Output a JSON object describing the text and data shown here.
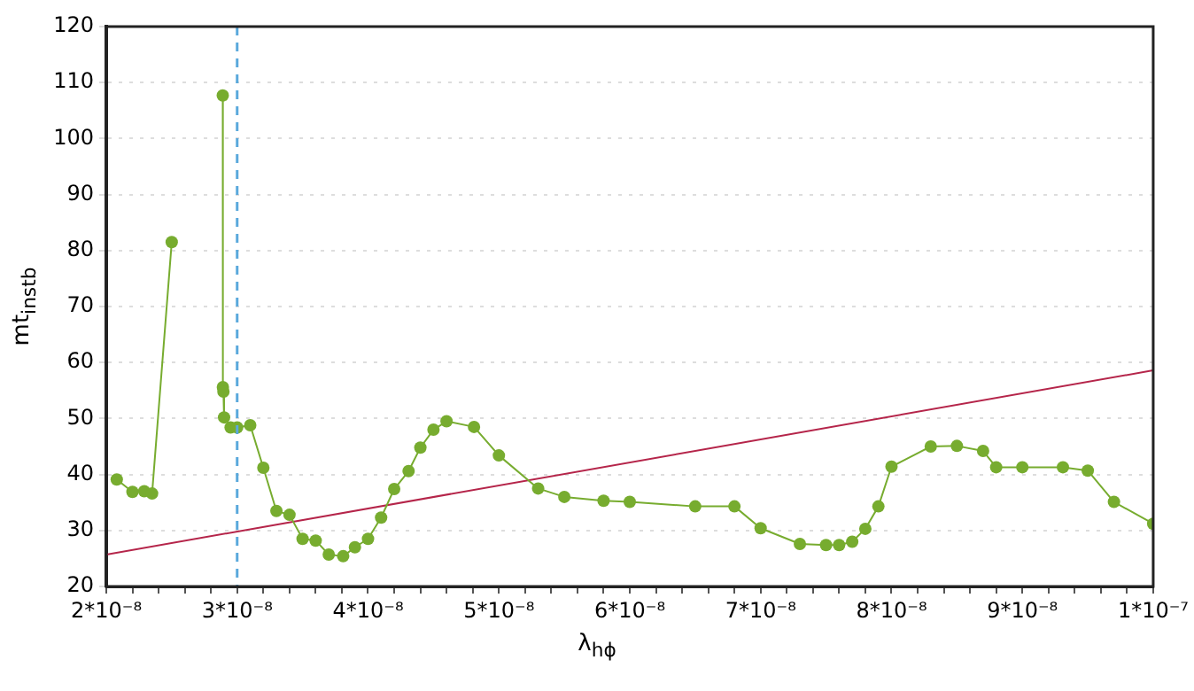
{
  "chart_data": {
    "type": "line",
    "xlabel": "λ$_{hϕ}$",
    "ylabel": "mt$_{instb}$",
    "marker": "circle",
    "grid": "y",
    "xlim": [
      2e-08,
      1e-07
    ],
    "ylim": [
      20,
      120
    ],
    "xticks": [
      {
        "value": 2e-08,
        "label": "2*10⁻⁸"
      },
      {
        "value": 2.2e-08,
        "label": null
      },
      {
        "value": 2.4e-08,
        "label": null
      },
      {
        "value": 2.6e-08,
        "label": null
      },
      {
        "value": 2.8e-08,
        "label": null
      },
      {
        "value": 3e-08,
        "label": "3*10⁻⁸"
      },
      {
        "value": 3.2e-08,
        "label": null
      },
      {
        "value": 3.4e-08,
        "label": null
      },
      {
        "value": 3.6e-08,
        "label": null
      },
      {
        "value": 3.8e-08,
        "label": null
      },
      {
        "value": 4e-08,
        "label": "4*10⁻⁸"
      },
      {
        "value": 4.2e-08,
        "label": null
      },
      {
        "value": 4.4e-08,
        "label": null
      },
      {
        "value": 4.6e-08,
        "label": null
      },
      {
        "value": 4.8e-08,
        "label": null
      },
      {
        "value": 5e-08,
        "label": "5*10⁻⁸"
      },
      {
        "value": 5.2e-08,
        "label": null
      },
      {
        "value": 5.4e-08,
        "label": null
      },
      {
        "value": 5.6e-08,
        "label": null
      },
      {
        "value": 5.8e-08,
        "label": null
      },
      {
        "value": 6e-08,
        "label": "6*10⁻⁸"
      },
      {
        "value": 6.2e-08,
        "label": null
      },
      {
        "value": 6.4e-08,
        "label": null
      },
      {
        "value": 6.6e-08,
        "label": null
      },
      {
        "value": 6.8e-08,
        "label": null
      },
      {
        "value": 7e-08,
        "label": "7*10⁻⁸"
      },
      {
        "value": 7.2e-08,
        "label": null
      },
      {
        "value": 7.4e-08,
        "label": null
      },
      {
        "value": 7.6e-08,
        "label": null
      },
      {
        "value": 7.8e-08,
        "label": null
      },
      {
        "value": 8e-08,
        "label": "8*10⁻⁸"
      },
      {
        "value": 8.2e-08,
        "label": null
      },
      {
        "value": 8.4e-08,
        "label": null
      },
      {
        "value": 8.6e-08,
        "label": null
      },
      {
        "value": 8.8e-08,
        "label": null
      },
      {
        "value": 9e-08,
        "label": "9*10⁻⁸"
      },
      {
        "value": 9.2e-08,
        "label": null
      },
      {
        "value": 9.4e-08,
        "label": null
      },
      {
        "value": 9.6e-08,
        "label": null
      },
      {
        "value": 9.8e-08,
        "label": null
      },
      {
        "value": 1e-07,
        "label": "1*10⁻⁷"
      }
    ],
    "yticks": [
      20,
      30,
      40,
      50,
      60,
      70,
      80,
      90,
      100,
      110,
      120
    ],
    "ref_lines": [
      {
        "axis": "x",
        "value": 3e-08,
        "color": "#5aa9dc",
        "line_style": "dashed"
      }
    ],
    "series": [
      {
        "color": "#77ac2f",
        "x": [
          2.08e-08,
          2.2e-08,
          2.29e-08,
          2.35e-08,
          2.5e-08
        ],
        "values": [
          39.1,
          36.9,
          37.0,
          36.6,
          81.5
        ]
      },
      {
        "color": "#77ac2f",
        "x": [
          2.89e-08,
          2.891e-08,
          2.895e-08,
          2.9e-08,
          2.95e-08,
          3e-08,
          3.1e-08,
          3.2e-08,
          3.3e-08,
          3.4e-08,
          3.5e-08,
          3.6e-08,
          3.7e-08,
          3.81e-08,
          3.9e-08,
          4e-08,
          4.1e-08,
          4.2e-08,
          4.31e-08,
          4.4e-08,
          4.5e-08,
          4.6e-08,
          4.81e-08,
          5e-08,
          5.3e-08,
          5.5e-08,
          5.8e-08,
          6e-08,
          6.5e-08,
          6.8e-08,
          7e-08,
          7.3e-08,
          7.5e-08,
          7.6e-08,
          7.7e-08,
          7.8e-08,
          7.9e-08,
          8e-08,
          8.3e-08,
          8.5e-08,
          8.7e-08,
          8.8e-08,
          9e-08,
          9.31e-08,
          9.5e-08,
          9.7e-08,
          1e-07
        ],
        "values": [
          107.7,
          55.6,
          54.8,
          50.2,
          48.4,
          48.4,
          48.8,
          41.2,
          33.5,
          32.8,
          28.5,
          28.2,
          25.7,
          25.4,
          27.0,
          28.5,
          32.3,
          37.4,
          40.6,
          44.8,
          48.0,
          49.5,
          48.5,
          43.4,
          37.5,
          36.0,
          35.3,
          35.1,
          34.3,
          34.3,
          30.4,
          27.6,
          27.4,
          27.4,
          28.0,
          30.3,
          34.3,
          41.4,
          45.0,
          45.1,
          44.2,
          41.3,
          41.3,
          41.3,
          40.7,
          35.1,
          31.2
        ]
      },
      {
        "color": "#b5254a",
        "marker": "none",
        "x": [
          2e-08,
          1e-07
        ],
        "values": [
          25.7,
          58.6
        ]
      }
    ]
  }
}
